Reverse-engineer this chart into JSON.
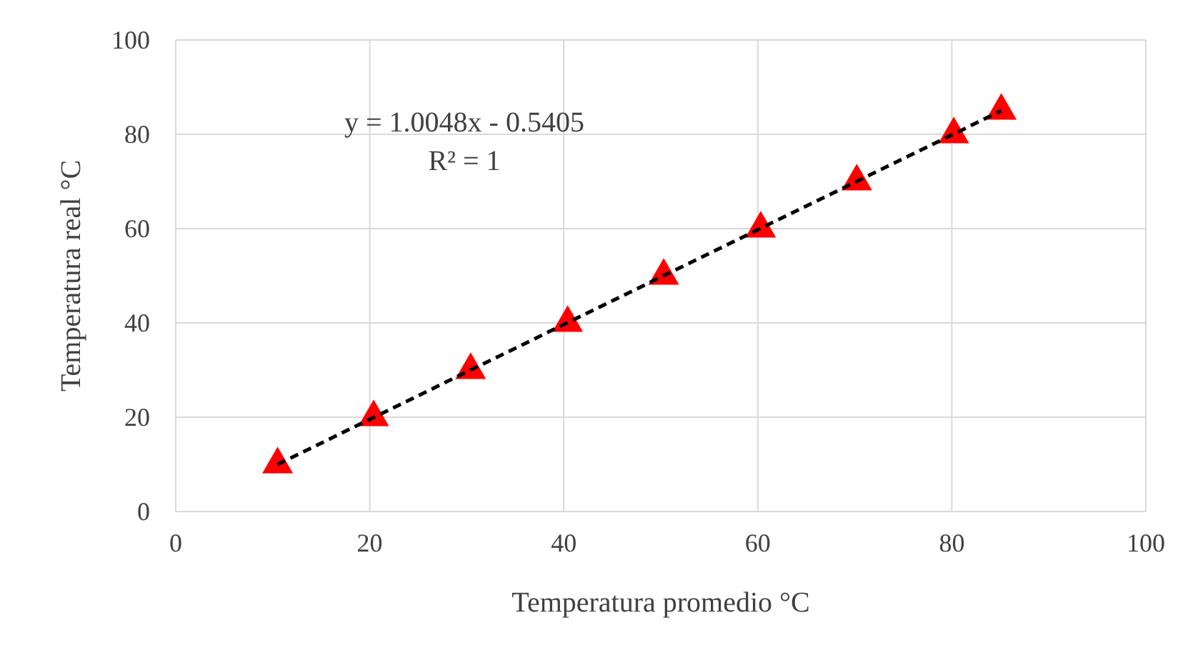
{
  "chart_data": {
    "type": "scatter",
    "xlabel": "Temperatura promedio °C",
    "ylabel": "Temperatura real °C",
    "xlim": [
      0,
      100
    ],
    "ylim": [
      0,
      100
    ],
    "xticks": [
      0,
      20,
      40,
      60,
      80,
      100
    ],
    "yticks": [
      0,
      20,
      40,
      60,
      80,
      100
    ],
    "grid": true,
    "annotations": [
      "y = 1.0048x - 0.5405",
      "R² = 1"
    ],
    "series": [
      {
        "color": "#ff0000",
        "marker": "triangle",
        "x": [
          10.5,
          20.4,
          30.4,
          40.4,
          50.3,
          60.3,
          70.2,
          80.2,
          85.1
        ],
        "values": [
          10,
          20,
          30,
          40,
          50,
          60,
          70,
          80,
          85
        ]
      },
      {
        "type": "line",
        "color": "#000000",
        "marker": "none",
        "line_style": "dashed",
        "x": [
          10.5,
          85.1
        ],
        "values": [
          10,
          85
        ]
      }
    ]
  }
}
